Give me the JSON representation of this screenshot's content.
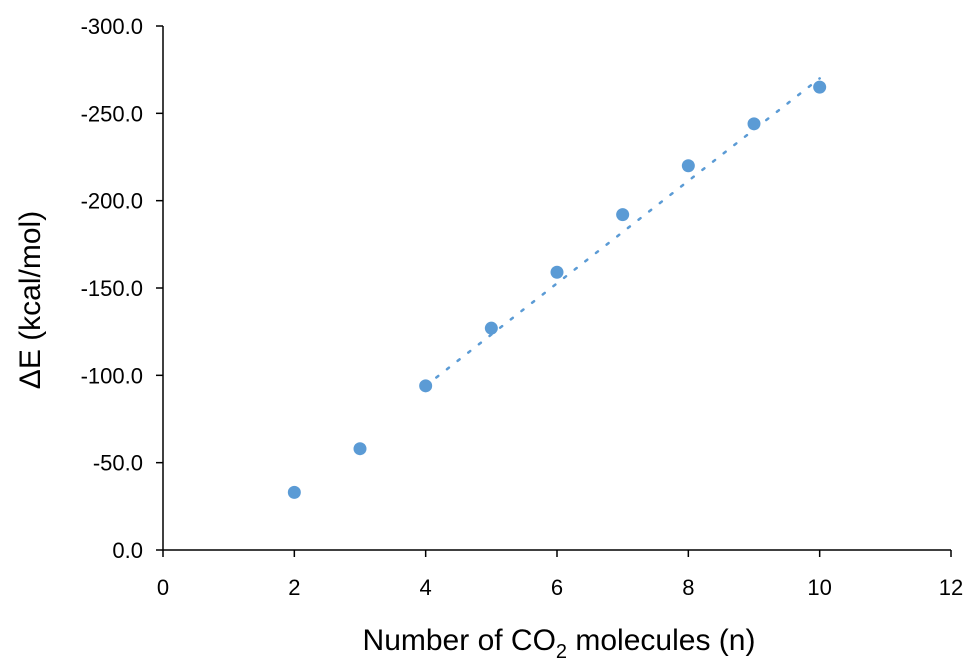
{
  "chart_data": {
    "type": "scatter",
    "title": "",
    "xlabel": "Number of CO",
    "xlabel_subscript": "2",
    "xlabel_suffix": " molecules (n)",
    "ylabel": "ΔE (kcal/mol)",
    "xlim": [
      0,
      12
    ],
    "ylim": [
      0,
      -300
    ],
    "x_ticks": [
      0,
      2,
      4,
      6,
      8,
      10,
      12
    ],
    "y_ticks": [
      0,
      -50,
      -100,
      -150,
      -200,
      -250,
      -300
    ],
    "y_tick_labels": [
      "0.0",
      "-50.0",
      "-100.0",
      "-150.0",
      "-200.0",
      "-250.0",
      "-300.0"
    ],
    "grid": false,
    "series": [
      {
        "x": [
          2,
          3,
          4,
          5,
          6,
          7,
          8,
          9,
          10
        ],
        "y": [
          -33,
          -58,
          -94,
          -127,
          -159,
          -192,
          -220,
          -244,
          -265
        ],
        "color": "#5b9bd5"
      }
    ],
    "trendline": {
      "type": "linear",
      "style": "dotted",
      "x_range": [
        4,
        10
      ],
      "y_range": [
        -94,
        -270
      ],
      "color": "#5b9bd5"
    }
  }
}
